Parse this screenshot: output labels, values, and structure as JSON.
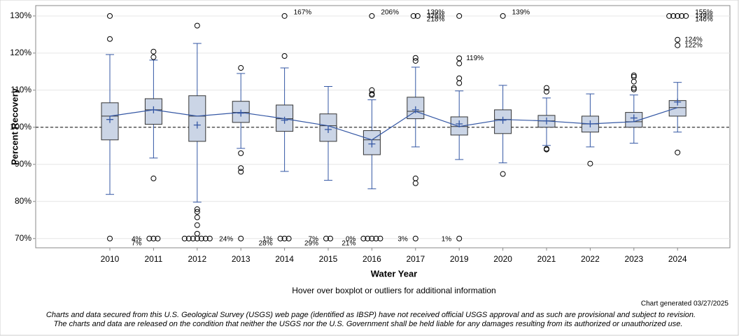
{
  "chart_data": {
    "type": "box",
    "y_label": "Percent Recovery",
    "x_label": "Water Year",
    "note": "Hover over boxplot or outliers for additional information",
    "generated": "Chart generated 03/27/2025",
    "disclaimer": [
      "Charts and data secured from this U.S. Geological Survey (USGS) web page (identified as IBSP) have not received official USGS approval and as such are provisional and subject to revision.",
      "The charts and data are released on the condition that neither the USGS nor the U.S. Government shall be held liable for any damages resulting from its authorized or unauthorized use."
    ],
    "ylim": [
      67.5,
      132.8
    ],
    "yticks": [
      {
        "value": 70,
        "label": "70%"
      },
      {
        "value": 80,
        "label": "80%"
      },
      {
        "value": 90,
        "label": "90%"
      },
      {
        "value": 100,
        "label": "100%"
      },
      {
        "value": 110,
        "label": "110%"
      },
      {
        "value": 120,
        "label": "120%"
      },
      {
        "value": 130,
        "label": "130%"
      }
    ],
    "reference_line": 100,
    "grid": true,
    "box_color": "#cbd5e6",
    "line_color": "#3457a4",
    "boxes": [
      {
        "category": "2010",
        "whisker_low": 81.9,
        "q1": 96.6,
        "median": 103,
        "q3": 106.6,
        "whisker_high": 119.6,
        "mean": 102.1,
        "outliers": [
          130,
          123.8,
          70
        ],
        "high_labels": [],
        "low_labels": []
      },
      {
        "category": "2011",
        "whisker_low": 91.7,
        "q1": 100.8,
        "median": 104.7,
        "q3": 107.7,
        "whisker_high": 118.1,
        "mean": 104.7,
        "outliers": [
          120.4,
          118.9,
          86.2,
          70,
          70,
          70
        ],
        "high_labels": [],
        "low_labels": [
          "4%",
          "7%"
        ]
      },
      {
        "category": "2012",
        "whisker_low": 79.8,
        "q1": 96.2,
        "median": 103,
        "q3": 108.5,
        "whisker_high": 122.6,
        "mean": 100.6,
        "outliers": [
          127.4,
          77.9,
          77.2,
          75.7,
          73.6,
          71.3,
          70,
          70,
          70,
          70,
          70,
          70,
          70
        ],
        "high_labels": [],
        "low_labels": []
      },
      {
        "category": "2013",
        "whisker_low": 94.3,
        "q1": 101.3,
        "median": 104,
        "q3": 107,
        "whisker_high": 114.5,
        "mean": 103.8,
        "outliers": [
          116,
          93,
          89,
          88,
          70
        ],
        "high_labels": [],
        "low_labels": [
          "24%"
        ]
      },
      {
        "category": "2014",
        "whisker_low": 88.1,
        "q1": 98.9,
        "median": 102.3,
        "q3": 106,
        "whisker_high": 116,
        "mean": 101.9,
        "outliers": [
          119.2,
          130,
          70,
          70,
          70
        ],
        "high_labels": [
          "167%"
        ],
        "low_labels": [
          "1%",
          "28%"
        ]
      },
      {
        "category": "2015",
        "whisker_low": 85.7,
        "q1": 96.2,
        "median": 100.4,
        "q3": 103.6,
        "whisker_high": 111,
        "mean": 99.4,
        "outliers": [
          70,
          70
        ],
        "high_labels": [],
        "low_labels": [
          "7%",
          "29%"
        ]
      },
      {
        "category": "2016",
        "whisker_low": 83.4,
        "q1": 92.6,
        "median": 96.6,
        "q3": 99.1,
        "whisker_high": 107.4,
        "mean": 95.5,
        "outliers": [
          110,
          109,
          108.7,
          130,
          70,
          70,
          70,
          70,
          70
        ],
        "high_labels": [
          "206%"
        ],
        "low_labels": [
          "0%",
          "21%"
        ]
      },
      {
        "category": "2017",
        "whisker_low": 94.7,
        "q1": 102.3,
        "median": 104.3,
        "q3": 108.1,
        "whisker_high": 116.2,
        "mean": 104.7,
        "outliers": [
          118.7,
          117.9,
          86.2,
          84.9,
          130,
          130,
          70
        ],
        "high_labels": [
          "139%",
          "326%",
          "218%"
        ],
        "low_labels": [
          "3%"
        ]
      },
      {
        "category": "2019",
        "whisker_low": 91.3,
        "q1": 97.9,
        "median": 100.2,
        "q3": 102.8,
        "whisker_high": 109.8,
        "mean": 100.9,
        "outliers": [
          {
            "value": 118.6,
            "label": "119%"
          },
          117.2,
          113.2,
          111.9,
          130,
          70
        ],
        "high_labels": [],
        "low_labels": [
          "1%"
        ]
      },
      {
        "category": "2020",
        "whisker_low": 90.4,
        "q1": 98.3,
        "median": 102.1,
        "q3": 104.7,
        "whisker_high": 111.3,
        "mean": 101.9,
        "outliers": [
          87.4,
          130
        ],
        "high_labels": [
          "139%"
        ],
        "low_labels": []
      },
      {
        "category": "2021",
        "whisker_low": 95.1,
        "q1": 100,
        "median": 101.7,
        "q3": 103.2,
        "whisker_high": 107.9,
        "mean": 101.7,
        "outliers": [
          110.6,
          109.6,
          94.2,
          94
        ],
        "high_labels": [],
        "low_labels": []
      },
      {
        "category": "2022",
        "whisker_low": 94.7,
        "q1": 98.7,
        "median": 100.9,
        "q3": 103,
        "whisker_high": 109,
        "mean": 100.9,
        "outliers": [
          90.2
        ],
        "high_labels": [],
        "low_labels": []
      },
      {
        "category": "2023",
        "whisker_low": 95.7,
        "q1": 100,
        "median": 101.5,
        "q3": 104,
        "whisker_high": 108.7,
        "mean": 102.5,
        "outliers": [
          114,
          113.6,
          112.3,
          110.6,
          110.2
        ],
        "high_labels": [],
        "low_labels": []
      },
      {
        "category": "2024",
        "whisker_low": 98.7,
        "q1": 103,
        "median": 105.3,
        "q3": 107.2,
        "whisker_high": 112.1,
        "mean": 106.8,
        "outliers": [
          {
            "value": 123.6,
            "label": "124%"
          },
          {
            "value": 122.1,
            "label": "122%"
          },
          93.2,
          130,
          130,
          130,
          130,
          130
        ],
        "high_labels": [
          "155%",
          "149%",
          "146%"
        ],
        "low_labels": []
      }
    ]
  }
}
